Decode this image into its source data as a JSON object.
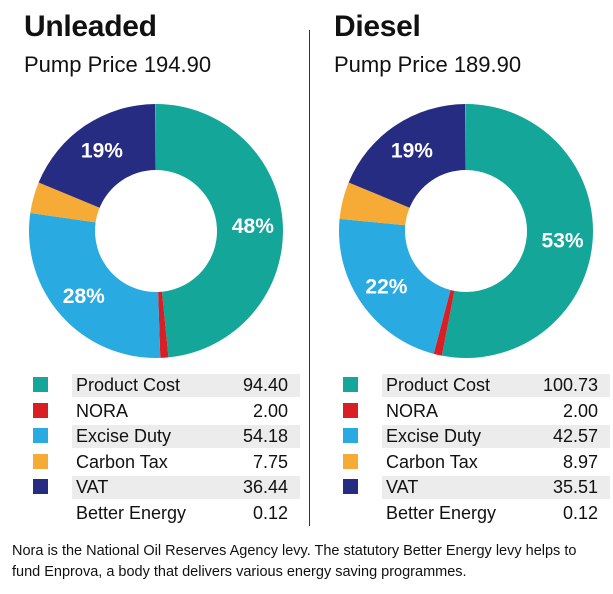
{
  "chart_data": [
    {
      "type": "pie",
      "title": "Unleaded",
      "subtitle": "Pump Price 194.90",
      "slices": [
        {
          "label": "Product Cost",
          "value": 94.4,
          "display": "94.40",
          "color": "#14a699",
          "pct_label": "48%"
        },
        {
          "label": "NORA",
          "value": 2.0,
          "display": "2.00",
          "color": "#d91f26",
          "pct_label": ""
        },
        {
          "label": "Excise Duty",
          "value": 54.18,
          "display": "54.18",
          "color": "#29aae1",
          "pct_label": "28%"
        },
        {
          "label": "Carbon Tax",
          "value": 7.75,
          "display": "7.75",
          "color": "#f5ab36",
          "pct_label": ""
        },
        {
          "label": "VAT",
          "value": 36.44,
          "display": "36.44",
          "color": "#262c82",
          "pct_label": "19%"
        },
        {
          "label": "Better Energy",
          "value": 0.12,
          "display": "0.12",
          "color": "",
          "pct_label": ""
        }
      ]
    },
    {
      "type": "pie",
      "title": "Diesel",
      "subtitle": "Pump Price 189.90",
      "slices": [
        {
          "label": "Product Cost",
          "value": 100.73,
          "display": "100.73",
          "color": "#14a699",
          "pct_label": "53%"
        },
        {
          "label": "NORA",
          "value": 2.0,
          "display": "2.00",
          "color": "#d91f26",
          "pct_label": ""
        },
        {
          "label": "Excise Duty",
          "value": 42.57,
          "display": "42.57",
          "color": "#29aae1",
          "pct_label": "22%"
        },
        {
          "label": "Carbon Tax",
          "value": 8.97,
          "display": "8.97",
          "color": "#f5ab36",
          "pct_label": ""
        },
        {
          "label": "VAT",
          "value": 35.51,
          "display": "35.51",
          "color": "#262c82",
          "pct_label": "19%"
        },
        {
          "label": "Better Energy",
          "value": 0.12,
          "display": "0.12",
          "color": "",
          "pct_label": ""
        }
      ]
    }
  ],
  "footnote": "Nora is the National Oil Reserves Agency levy. The statutory Better Energy levy helps to fund Enprova, a body that delivers various energy saving programmes."
}
